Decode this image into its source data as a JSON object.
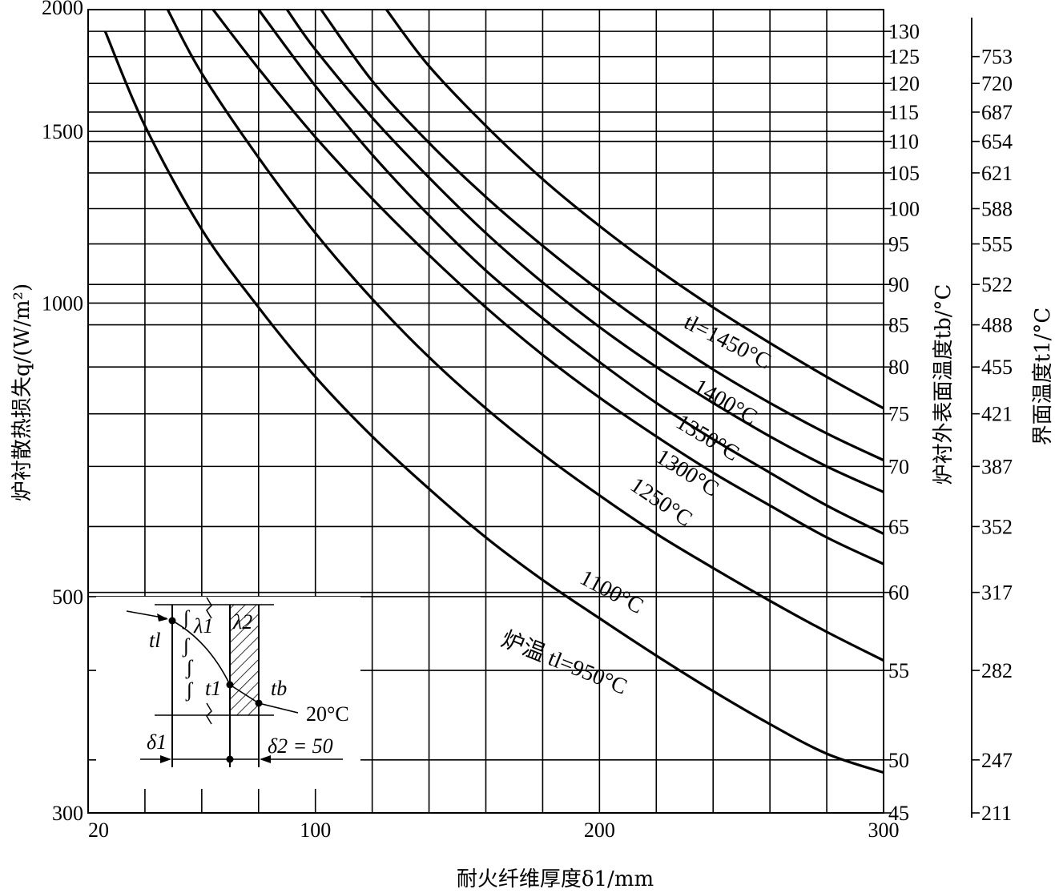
{
  "chart_data": {
    "type": "line",
    "xlabel": "耐火纤维厚度δ1/mm",
    "ylabel": "炉衬散热损失q/(W/m²)",
    "y2label": "炉衬外表面温度tb/°C",
    "y3label": "界面温度t1/°C",
    "xlim": [
      20,
      300
    ],
    "ylim": [
      300,
      2000
    ],
    "x_ticks": [
      {
        "value": 20,
        "label": "20"
      },
      {
        "value": 100,
        "label": "100"
      },
      {
        "value": 200,
        "label": "200"
      },
      {
        "value": 300,
        "label": "300"
      }
    ],
    "y_ticks": [
      {
        "value": 2000,
        "label": "2000"
      },
      {
        "value": 1500,
        "label": "1500"
      },
      {
        "value": 1000,
        "label": "1000"
      },
      {
        "value": 500,
        "label": "500"
      },
      {
        "value": 300,
        "label": "300"
      }
    ],
    "y2_ticks": [
      {
        "q": 1900,
        "label": "130"
      },
      {
        "q": 1790,
        "label": "125"
      },
      {
        "q": 1680,
        "label": "120"
      },
      {
        "q": 1570,
        "label": "115"
      },
      {
        "q": 1465,
        "label": "110"
      },
      {
        "q": 1360,
        "label": "105"
      },
      {
        "q": 1250,
        "label": "100"
      },
      {
        "q": 1150,
        "label": "95"
      },
      {
        "q": 1045,
        "label": "90"
      },
      {
        "q": 950,
        "label": "85"
      },
      {
        "q": 860,
        "label": "80"
      },
      {
        "q": 770,
        "label": "75"
      },
      {
        "q": 680,
        "label": "70"
      },
      {
        "q": 590,
        "label": "65"
      },
      {
        "q": 505,
        "label": "60"
      },
      {
        "q": 420,
        "label": "55"
      },
      {
        "q": 340,
        "label": "50"
      },
      {
        "q": 300,
        "label": "45"
      }
    ],
    "y3_ticks": [
      {
        "q": 1790,
        "label": "753"
      },
      {
        "q": 1680,
        "label": "720"
      },
      {
        "q": 1570,
        "label": "687"
      },
      {
        "q": 1465,
        "label": "654"
      },
      {
        "q": 1360,
        "label": "621"
      },
      {
        "q": 1250,
        "label": "588"
      },
      {
        "q": 1150,
        "label": "555"
      },
      {
        "q": 1045,
        "label": "522"
      },
      {
        "q": 950,
        "label": "488"
      },
      {
        "q": 860,
        "label": "455"
      },
      {
        "q": 770,
        "label": "421"
      },
      {
        "q": 680,
        "label": "387"
      },
      {
        "q": 590,
        "label": "352"
      },
      {
        "q": 505,
        "label": "317"
      },
      {
        "q": 420,
        "label": "282"
      },
      {
        "q": 340,
        "label": "247"
      },
      {
        "q": 300,
        "label": "211"
      }
    ],
    "grid_x": [
      40,
      60,
      80,
      100,
      120,
      140,
      160,
      180,
      200,
      220,
      240,
      260,
      280
    ],
    "grid_y": [
      340,
      420,
      505,
      590,
      680,
      770,
      860,
      950,
      1045,
      1150,
      1250,
      1360,
      1465,
      1570,
      1680,
      1790,
      1900
    ],
    "series": [
      {
        "name": "炉温 tl=950°C",
        "x": [
          26,
          40,
          60,
          80,
          100,
          120,
          140,
          160,
          180,
          200,
          220,
          240,
          260,
          280,
          300
        ],
        "y": [
          1900,
          1520,
          1190,
          990,
          840,
          730,
          645,
          575,
          520,
          475,
          435,
          400,
          370,
          345,
          330
        ]
      },
      {
        "name": "1100°C",
        "x": [
          48,
          60,
          80,
          100,
          120,
          140,
          160,
          180,
          200,
          220,
          240,
          260,
          280,
          300
        ],
        "y": [
          2000,
          1720,
          1410,
          1180,
          1010,
          880,
          780,
          700,
          635,
          580,
          535,
          495,
          460,
          430
        ]
      },
      {
        "name": "1250°C",
        "x": [
          64,
          80,
          100,
          120,
          140,
          160,
          180,
          200,
          220,
          240,
          260,
          280,
          300
        ],
        "y": [
          2000,
          1740,
          1480,
          1280,
          1120,
          990,
          885,
          800,
          730,
          670,
          620,
          575,
          540
        ]
      },
      {
        "name": "1300°C",
        "x": [
          80,
          100,
          120,
          140,
          160,
          180,
          200,
          220,
          240,
          260,
          280,
          300
        ],
        "y": [
          2000,
          1670,
          1420,
          1230,
          1080,
          965,
          870,
          790,
          725,
          670,
          620,
          580
        ]
      },
      {
        "name": "1350°C",
        "x": [
          90,
          100,
          120,
          140,
          160,
          180,
          200,
          220,
          240,
          260,
          280,
          300
        ],
        "y": [
          2000,
          1820,
          1550,
          1345,
          1180,
          1050,
          945,
          860,
          790,
          730,
          680,
          640
        ]
      },
      {
        "name": "1400°C",
        "x": [
          102,
          120,
          140,
          160,
          180,
          200,
          220,
          240,
          260,
          280,
          300
        ],
        "y": [
          2000,
          1690,
          1460,
          1285,
          1145,
          1030,
          935,
          855,
          790,
          735,
          690
        ]
      },
      {
        "name": "tl=1450°C",
        "x": [
          125,
          140,
          160,
          180,
          200,
          220,
          240,
          260,
          280,
          300
        ],
        "y": [
          2000,
          1750,
          1520,
          1340,
          1200,
          1085,
          990,
          910,
          840,
          780
        ]
      }
    ],
    "labels": [
      {
        "text": "tl=1450°C"
      },
      {
        "text": "1400°C"
      },
      {
        "text": "1350°C"
      },
      {
        "text": "1300°C"
      },
      {
        "text": "1250°C"
      },
      {
        "text": "1100°C"
      },
      {
        "text": "炉温  tl=950°C"
      }
    ],
    "inset": {
      "t_l": "tl",
      "lambda1": "λ1",
      "lambda2": "λ2",
      "t1": "t1",
      "tb": "tb",
      "ambient": "20°C",
      "delta1": "δ1",
      "delta2": "δ2 = 50"
    }
  }
}
